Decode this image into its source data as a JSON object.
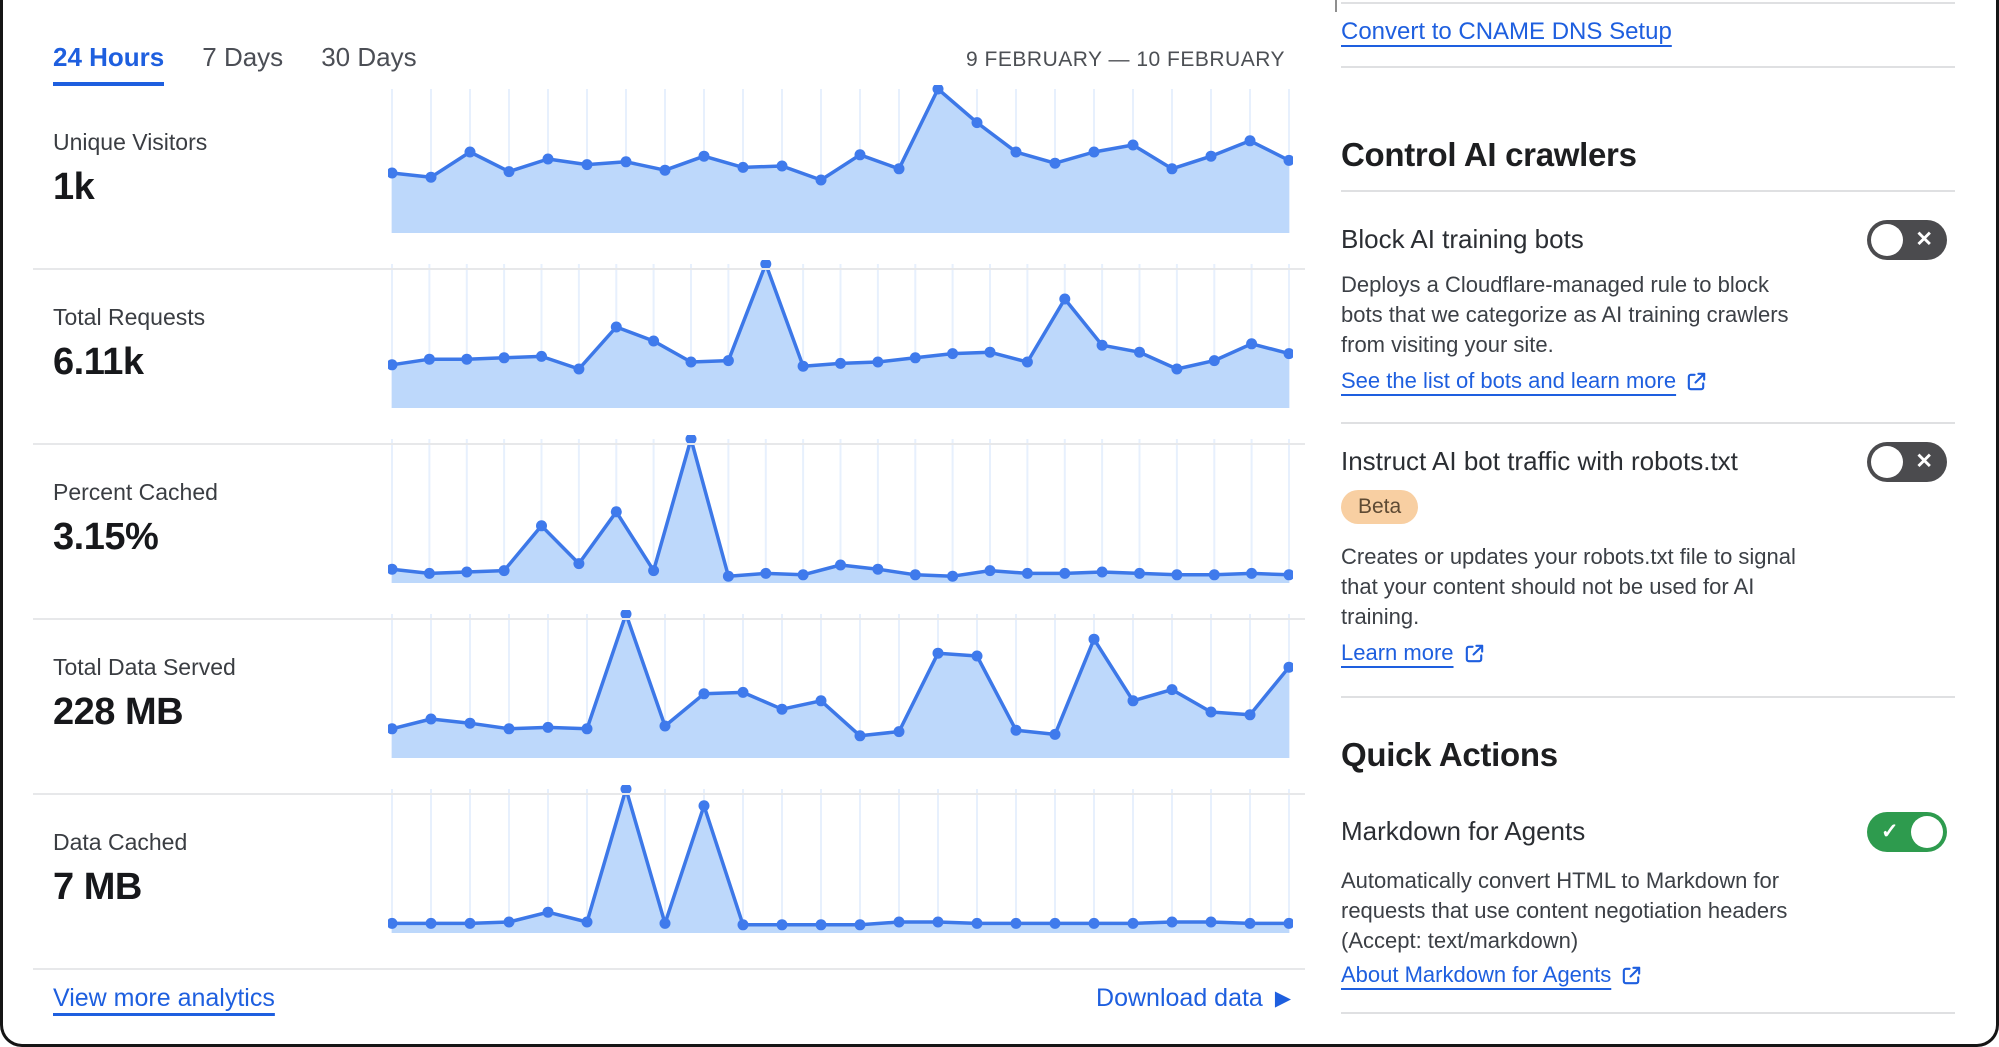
{
  "colors": {
    "link_blue": "#1E5FDF",
    "chart_line": "#3D78E8",
    "chart_dot": "#3F7AEC",
    "chart_fill": "#BDD8FB",
    "chart_grid": "#E7F0FD",
    "toggle_off_track": "#4B4B4E",
    "toggle_on_track": "#2E9B4E",
    "badge_bg": "#F8CFA2",
    "badge_text": "#5E4A33"
  },
  "header": {
    "tabs": [
      {
        "label": "24 Hours",
        "active": true
      },
      {
        "label": "7 Days",
        "active": false
      },
      {
        "label": "30 Days",
        "active": false
      }
    ],
    "date_range": "9 FEBRUARY — 10 FEBRUARY"
  },
  "chart_data": [
    {
      "type": "area",
      "title": "Unique Visitors",
      "display_value": "1k",
      "x_range": "9 February – 10 February (24 hours, hourly points)",
      "y_scale": "relative 0–100 (unlabeled sparkline)",
      "grid": "vertical lines at each point",
      "legend": "none",
      "values": [
        40,
        37,
        55,
        41,
        50,
        46,
        48,
        42,
        52,
        44,
        45,
        35,
        53,
        43,
        100,
        76,
        55,
        47,
        55,
        60,
        43,
        52,
        63,
        49
      ]
    },
    {
      "type": "area",
      "title": "Total Requests",
      "display_value": "6.11k",
      "x_range": "9 February – 10 February (24 hours, hourly points)",
      "y_scale": "relative 0–100 (unlabeled sparkline)",
      "grid": "vertical lines at each point",
      "legend": "none",
      "values": [
        28,
        32,
        32,
        33,
        34,
        25,
        55,
        45,
        30,
        31,
        100,
        27,
        29,
        30,
        33,
        36,
        37,
        30,
        75,
        42,
        37,
        25,
        31,
        43,
        36
      ]
    },
    {
      "type": "area",
      "title": "Percent Cached",
      "display_value": "3.15%",
      "x_range": "9 February – 10 February (24 hours, hourly points)",
      "y_scale": "relative 0–100 (unlabeled sparkline)",
      "grid": "vertical lines at each point",
      "legend": "none",
      "values": [
        7,
        4,
        5,
        6,
        38,
        11,
        48,
        6,
        100,
        2,
        4,
        3,
        10,
        7,
        3,
        2,
        6,
        4,
        4,
        5,
        4,
        3,
        3,
        4,
        3
      ]
    },
    {
      "type": "area",
      "title": "Total Data Served",
      "display_value": "228 MB",
      "x_range": "9 February – 10 February (24 hours, hourly points)",
      "y_scale": "relative 0–100 (unlabeled sparkline)",
      "grid": "vertical lines at each point",
      "legend": "none",
      "values": [
        18,
        25,
        22,
        18,
        19,
        18,
        100,
        20,
        43,
        44,
        32,
        38,
        13,
        16,
        72,
        70,
        17,
        14,
        82,
        38,
        46,
        30,
        28,
        62
      ]
    },
    {
      "type": "area",
      "title": "Data Cached",
      "display_value": "7 MB",
      "x_range": "9 February – 10 February (24 hours, hourly points)",
      "y_scale": "relative 0–100 (unlabeled sparkline)",
      "grid": "vertical lines at each point",
      "legend": "none",
      "values": [
        4,
        4,
        4,
        5,
        12,
        5,
        100,
        4,
        88,
        3,
        3,
        3,
        3,
        5,
        5,
        4,
        4,
        4,
        4,
        4,
        5,
        5,
        4,
        4
      ]
    }
  ],
  "footer": {
    "view_more_label": "View more analytics",
    "download_label": "Download data"
  },
  "icons": {
    "download_arrow": "▶",
    "toggle_off_glyph": "✕",
    "toggle_on_glyph": "✓",
    "external_link": "box-with-arrow"
  },
  "sidebar": {
    "top_link": "Convert to CNAME DNS Setup",
    "sections": [
      {
        "heading": "Control AI crawlers",
        "features": [
          {
            "title": "Block AI training bots",
            "enabled": false,
            "description": "Deploys a Cloudflare-managed rule to block bots that we categorize as AI training crawlers from visiting your site.",
            "link_label": "See the list of bots and learn more"
          },
          {
            "title": "Instruct AI bot traffic with robots.txt",
            "badge": "Beta",
            "enabled": false,
            "description": "Creates or updates your robots.txt file to signal that your content should not be used for AI training.",
            "link_label": "Learn more"
          }
        ]
      },
      {
        "heading": "Quick Actions",
        "features": [
          {
            "title": "Markdown for Agents",
            "enabled": true,
            "description": "Automatically convert HTML to Markdown for requests that use content negotiation headers (Accept: text/markdown)",
            "link_label": "About Markdown for Agents"
          }
        ]
      }
    ]
  }
}
